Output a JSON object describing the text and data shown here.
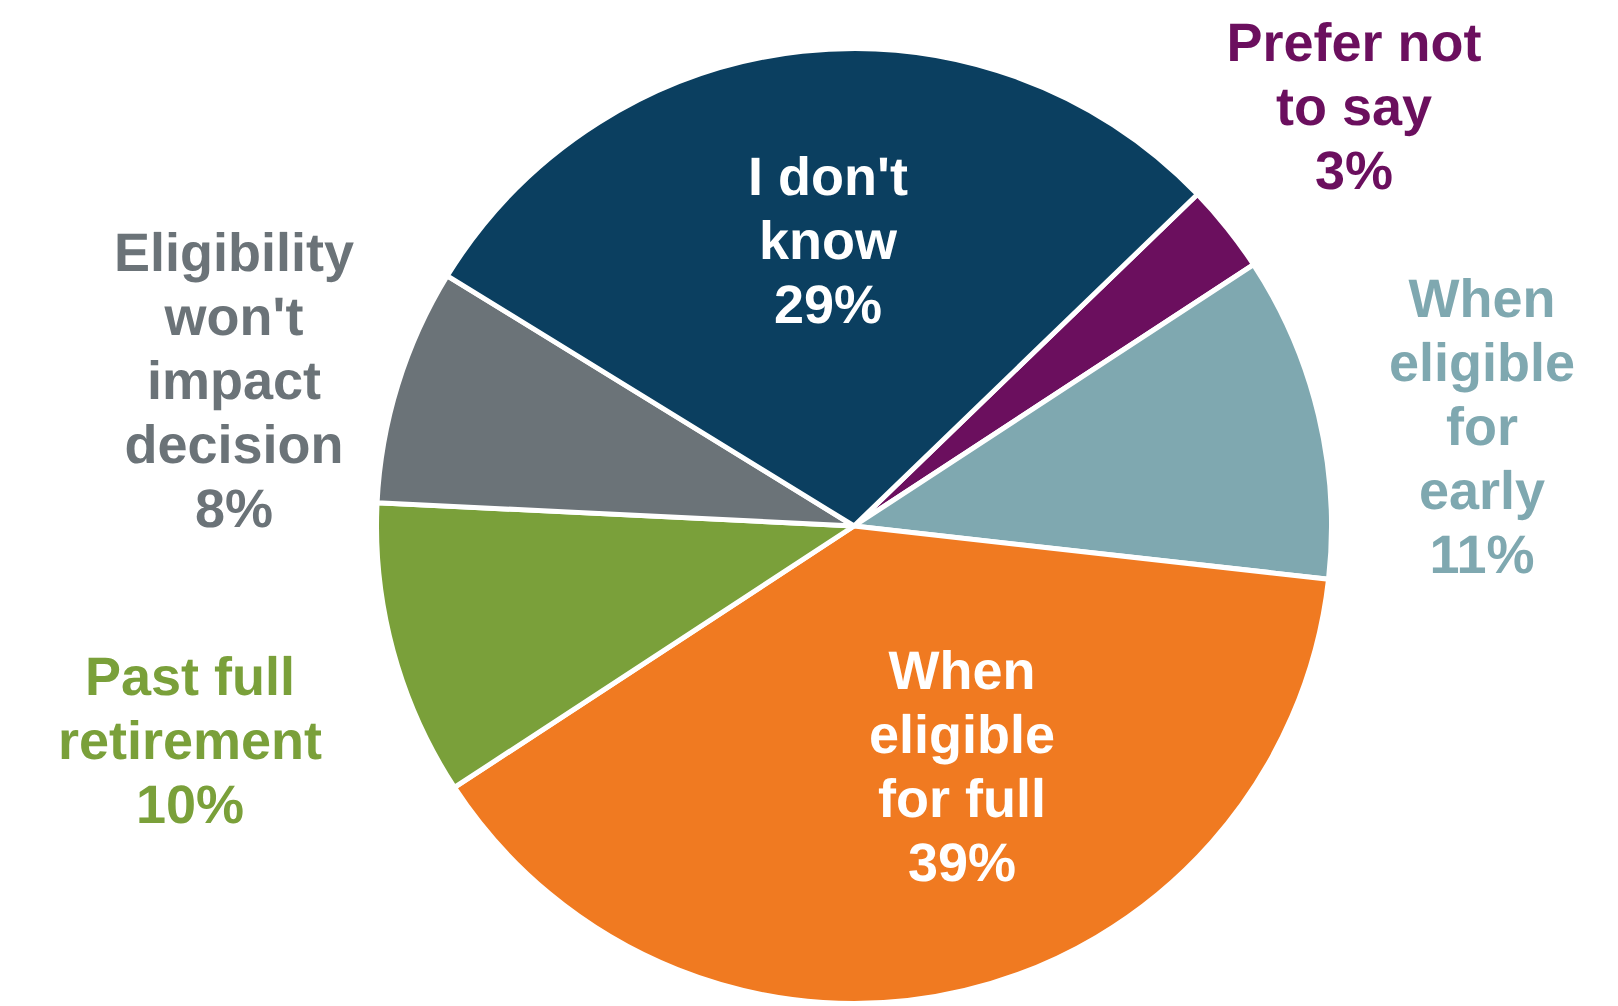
{
  "chart_data": {
    "type": "pie",
    "categories": [
      "Prefer not to say",
      "When eligible for early",
      "When eligible for full",
      "Past full retirement",
      "Eligibility won't impact decision",
      "I don't know"
    ],
    "values": [
      3,
      11,
      39,
      10,
      8,
      29
    ],
    "value_labels": [
      "3%",
      "11%",
      "39%",
      "10%",
      "8%",
      "29%"
    ],
    "colors": [
      "#6b0f5e",
      "#7fa8b0",
      "#f07a21",
      "#7aa03a",
      "#6b7378",
      "#0b3f60"
    ],
    "legend": false
  }
}
